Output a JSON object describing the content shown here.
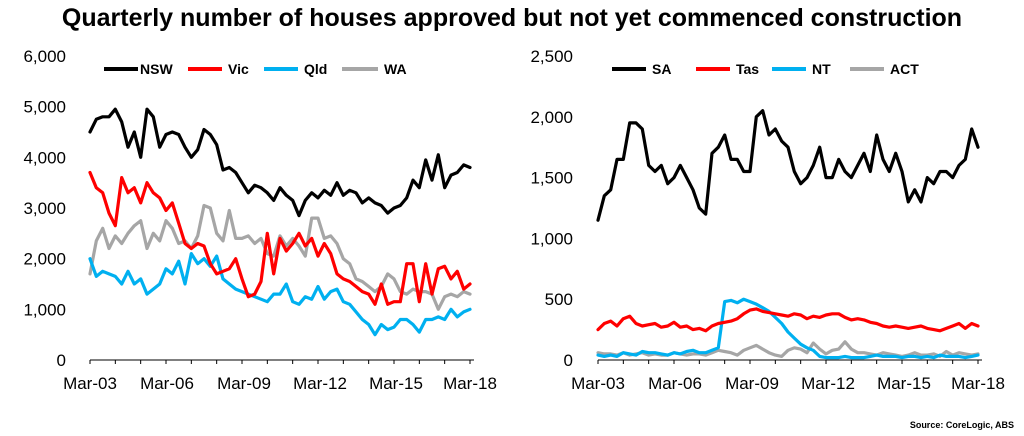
{
  "title": "Quarterly number of houses approved but not yet commenced construction",
  "source": "Source: CoreLogic, ABS",
  "chart_data": [
    {
      "type": "line",
      "xlabels": [
        "Mar-03",
        "Mar-06",
        "Mar-09",
        "Mar-12",
        "Mar-15",
        "Mar-18"
      ],
      "ylim": [
        0,
        6000
      ],
      "yticks": [
        0,
        1000,
        2000,
        3000,
        4000,
        5000,
        6000
      ],
      "ytick_labels": [
        "0",
        "1,000",
        "2,000",
        "3,000",
        "4,000",
        "5,000",
        "6,000"
      ],
      "n_points": 61,
      "series": [
        {
          "name": "NSW",
          "color": "#000000",
          "values": [
            4500,
            4750,
            4800,
            4800,
            4950,
            4700,
            4200,
            4500,
            4000,
            4950,
            4800,
            4200,
            4450,
            4500,
            4450,
            4200,
            4000,
            4150,
            4550,
            4450,
            4250,
            3750,
            3800,
            3700,
            3500,
            3300,
            3450,
            3400,
            3300,
            3150,
            3400,
            3250,
            3150,
            2850,
            3150,
            3300,
            3200,
            3350,
            3250,
            3500,
            3250,
            3350,
            3300,
            3100,
            3200,
            3100,
            3050,
            2900,
            3000,
            3050,
            3200,
            3550,
            3400,
            3950,
            3550,
            4050,
            3400,
            3650,
            3700,
            3850,
            3800
          ]
        },
        {
          "name": "Vic",
          "color": "#ff0000",
          "values": [
            3700,
            3400,
            3300,
            2900,
            2650,
            3600,
            3300,
            3400,
            3100,
            3500,
            3300,
            3200,
            2950,
            3100,
            2700,
            2300,
            2200,
            2300,
            2250,
            1900,
            1700,
            1750,
            1800,
            2000,
            1600,
            1250,
            1300,
            1550,
            2500,
            1700,
            2400,
            2150,
            2300,
            2500,
            2250,
            2400,
            2050,
            2300,
            2100,
            1700,
            1600,
            1550,
            1450,
            1350,
            1300,
            1100,
            1500,
            1100,
            1150,
            1150,
            1900,
            1900,
            1150,
            1900,
            1300,
            1800,
            1850,
            1600,
            1750,
            1400,
            1500
          ]
        },
        {
          "name": "Qld",
          "color": "#00b0f0",
          "values": [
            2000,
            1650,
            1750,
            1700,
            1650,
            1500,
            1750,
            1500,
            1600,
            1300,
            1400,
            1500,
            1800,
            1700,
            1950,
            1500,
            2100,
            1900,
            2000,
            1850,
            2050,
            1600,
            1500,
            1400,
            1350,
            1300,
            1250,
            1200,
            1150,
            1300,
            1300,
            1500,
            1150,
            1100,
            1250,
            1200,
            1450,
            1200,
            1350,
            1400,
            1150,
            1100,
            950,
            800,
            700,
            500,
            700,
            600,
            650,
            800,
            800,
            700,
            550,
            800,
            800,
            850,
            800,
            1000,
            850,
            950,
            1000
          ]
        },
        {
          "name": "WA",
          "color": "#a6a6a6",
          "values": [
            1700,
            2350,
            2600,
            2200,
            2450,
            2300,
            2500,
            2650,
            2750,
            2200,
            2500,
            2350,
            2750,
            2600,
            2300,
            2350,
            2200,
            2450,
            3050,
            3000,
            2500,
            2350,
            2950,
            2400,
            2400,
            2450,
            2300,
            2400,
            2100,
            2050,
            2450,
            2250,
            2400,
            2250,
            2050,
            2800,
            2800,
            2400,
            2450,
            2300,
            2000,
            1900,
            1600,
            1550,
            1450,
            1350,
            1450,
            1700,
            1600,
            1350,
            1300,
            1400,
            1350,
            1350,
            1300,
            1000,
            1250,
            1300,
            1250,
            1350,
            1300
          ]
        }
      ]
    },
    {
      "type": "line",
      "xlabels": [
        "Mar-03",
        "Mar-06",
        "Mar-09",
        "Mar-12",
        "Mar-15",
        "Mar-18"
      ],
      "ylim": [
        0,
        2500
      ],
      "yticks": [
        0,
        500,
        1000,
        1500,
        2000,
        2500
      ],
      "ytick_labels": [
        "0",
        "500",
        "1,000",
        "1,500",
        "2,000",
        "2,500"
      ],
      "n_points": 61,
      "series": [
        {
          "name": "SA",
          "color": "#000000",
          "values": [
            1150,
            1350,
            1400,
            1650,
            1650,
            1950,
            1950,
            1900,
            1600,
            1550,
            1600,
            1450,
            1500,
            1600,
            1500,
            1400,
            1250,
            1200,
            1700,
            1750,
            1850,
            1650,
            1650,
            1550,
            1550,
            2000,
            2050,
            1850,
            1900,
            1800,
            1750,
            1550,
            1450,
            1500,
            1600,
            1750,
            1500,
            1500,
            1650,
            1550,
            1500,
            1600,
            1700,
            1550,
            1850,
            1650,
            1550,
            1700,
            1550,
            1300,
            1400,
            1300,
            1500,
            1450,
            1550,
            1550,
            1500,
            1600,
            1650,
            1900,
            1750
          ]
        },
        {
          "name": "Tas",
          "color": "#ff0000",
          "values": [
            250,
            300,
            320,
            280,
            340,
            360,
            300,
            280,
            290,
            300,
            270,
            280,
            310,
            270,
            280,
            250,
            260,
            240,
            280,
            300,
            310,
            320,
            340,
            380,
            410,
            420,
            400,
            390,
            380,
            370,
            360,
            380,
            370,
            340,
            360,
            350,
            370,
            380,
            380,
            350,
            330,
            340,
            330,
            310,
            300,
            280,
            270,
            280,
            270,
            260,
            270,
            280,
            260,
            250,
            240,
            260,
            280,
            300,
            260,
            300,
            280
          ]
        },
        {
          "name": "NT",
          "color": "#00b0f0",
          "values": [
            40,
            30,
            40,
            30,
            60,
            50,
            40,
            70,
            60,
            60,
            50,
            40,
            60,
            50,
            70,
            80,
            60,
            60,
            80,
            100,
            480,
            490,
            470,
            500,
            480,
            460,
            430,
            400,
            350,
            300,
            230,
            180,
            130,
            100,
            80,
            30,
            20,
            20,
            20,
            30,
            20,
            20,
            20,
            30,
            40,
            30,
            30,
            30,
            20,
            30,
            30,
            20,
            30,
            20,
            40,
            30,
            30,
            30,
            20,
            30,
            40
          ]
        },
        {
          "name": "ACT",
          "color": "#a6a6a6",
          "values": [
            60,
            50,
            50,
            40,
            60,
            40,
            50,
            60,
            40,
            50,
            40,
            40,
            60,
            50,
            40,
            50,
            50,
            40,
            60,
            80,
            70,
            60,
            40,
            80,
            100,
            120,
            90,
            60,
            40,
            30,
            80,
            100,
            90,
            60,
            140,
            90,
            50,
            80,
            90,
            150,
            90,
            60,
            60,
            50,
            40,
            60,
            50,
            40,
            30,
            40,
            60,
            40,
            40,
            50,
            30,
            70,
            40,
            60,
            50,
            40,
            50
          ]
        }
      ]
    }
  ]
}
